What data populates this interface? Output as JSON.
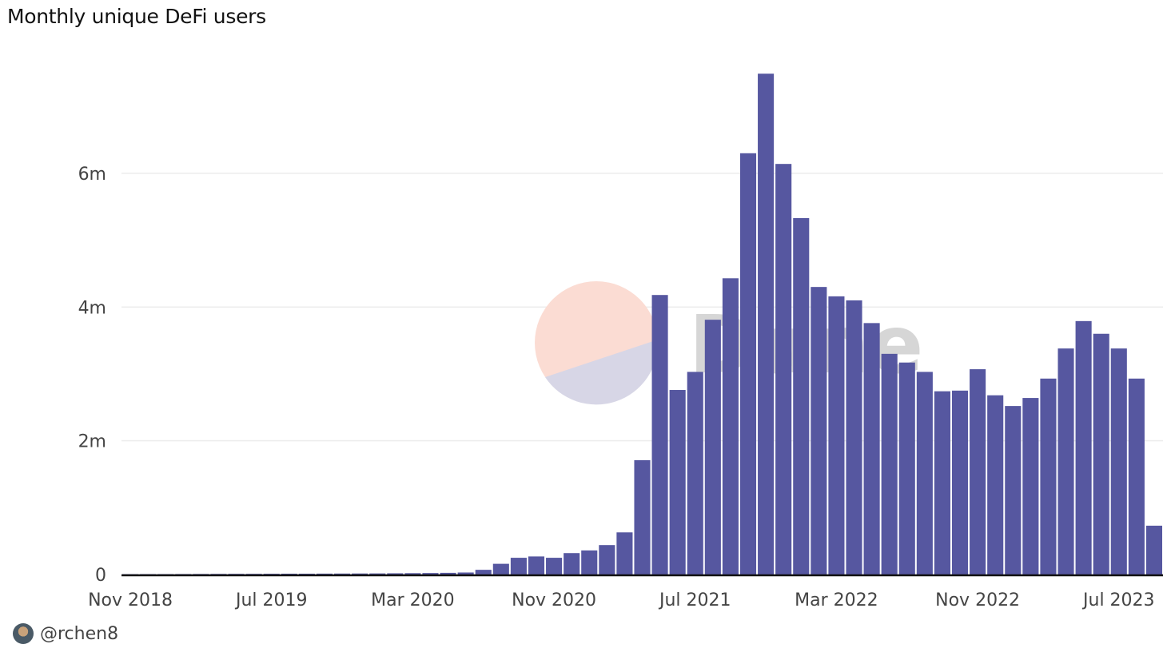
{
  "title": "Monthly unique DeFi users",
  "footer": {
    "handle": "@rchen8"
  },
  "watermark": {
    "text": "Dune"
  },
  "colors": {
    "bar": "#5657a0",
    "grid": "#ececec",
    "axis": "#111111"
  },
  "chart_data": {
    "type": "bar",
    "title": "Monthly unique DeFi users",
    "xlabel": "",
    "ylabel": "",
    "ylim": [
      0,
      7.6
    ],
    "yticks": [
      {
        "value": 0,
        "label": "0"
      },
      {
        "value": 2,
        "label": "2m"
      },
      {
        "value": 4,
        "label": "4m"
      },
      {
        "value": 6,
        "label": "6m"
      }
    ],
    "grid": true,
    "xtick_labels": [
      {
        "index": 0,
        "label": "Nov 2018"
      },
      {
        "index": 8,
        "label": "Jul 2019"
      },
      {
        "index": 16,
        "label": "Mar 2020"
      },
      {
        "index": 24,
        "label": "Nov 2020"
      },
      {
        "index": 32,
        "label": "Jul 2021"
      },
      {
        "index": 40,
        "label": "Mar 2022"
      },
      {
        "index": 48,
        "label": "Nov 2022"
      },
      {
        "index": 56,
        "label": "Jul 2023"
      }
    ],
    "categories": [
      "Nov 2018",
      "Dec 2018",
      "Jan 2019",
      "Feb 2019",
      "Mar 2019",
      "Apr 2019",
      "May 2019",
      "Jun 2019",
      "Jul 2019",
      "Aug 2019",
      "Sep 2019",
      "Oct 2019",
      "Nov 2019",
      "Dec 2019",
      "Jan 2020",
      "Feb 2020",
      "Mar 2020",
      "Apr 2020",
      "May 2020",
      "Jun 2020",
      "Jul 2020",
      "Aug 2020",
      "Sep 2020",
      "Oct 2020",
      "Nov 2020",
      "Dec 2020",
      "Jan 2021",
      "Feb 2021",
      "Mar 2021",
      "Apr 2021",
      "May 2021",
      "Jun 2021",
      "Jul 2021",
      "Aug 2021",
      "Sep 2021",
      "Oct 2021",
      "Nov 2021",
      "Dec 2021",
      "Jan 2022",
      "Feb 2022",
      "Mar 2022",
      "Apr 2022",
      "May 2022",
      "Jun 2022",
      "Jul 2022",
      "Aug 2022",
      "Sep 2022",
      "Oct 2022",
      "Nov 2022",
      "Dec 2022",
      "Jan 2023",
      "Feb 2023",
      "Mar 2023",
      "Apr 2023",
      "May 2023",
      "Jun 2023",
      "Jul 2023",
      "Aug 2023",
      "Sep 2023"
    ],
    "values": [
      0.005,
      0.006,
      0.006,
      0.007,
      0.008,
      0.009,
      0.01,
      0.01,
      0.011,
      0.012,
      0.012,
      0.013,
      0.014,
      0.015,
      0.016,
      0.018,
      0.02,
      0.022,
      0.025,
      0.03,
      0.07,
      0.16,
      0.25,
      0.27,
      0.25,
      0.32,
      0.36,
      0.44,
      0.63,
      1.71,
      4.18,
      2.76,
      3.03,
      3.81,
      4.43,
      6.3,
      7.49,
      6.14,
      5.33,
      4.3,
      4.16,
      4.1,
      3.76,
      3.3,
      3.17,
      3.03,
      2.74,
      2.75,
      3.07,
      2.68,
      2.52,
      2.64,
      2.93,
      3.38,
      3.79,
      3.6,
      3.38,
      2.93,
      0.73
    ]
  }
}
